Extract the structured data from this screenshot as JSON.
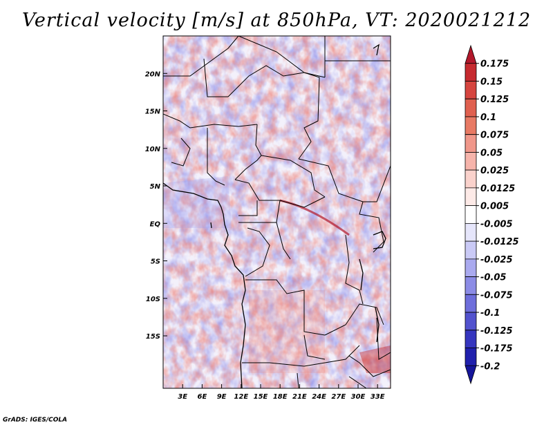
{
  "title": "Vertical velocity [m/s] at 850hPa, VT: 2020021212",
  "credit": "GrADS: IGES/COLA",
  "map": {
    "variable": "Vertical velocity",
    "units": "m/s",
    "level": "850hPa",
    "valid_time": "2020021212",
    "lon_range": [
      0,
      35
    ],
    "lat_range": [
      -22,
      25
    ],
    "lat_ticks": [
      {
        "value": 20,
        "label": "20N"
      },
      {
        "value": 15,
        "label": "15N"
      },
      {
        "value": 10,
        "label": "10N"
      },
      {
        "value": 5,
        "label": "5N"
      },
      {
        "value": 0,
        "label": "EQ"
      },
      {
        "value": -5,
        "label": "5S"
      },
      {
        "value": -10,
        "label": "10S"
      },
      {
        "value": -15,
        "label": "15S"
      }
    ],
    "lon_ticks": [
      {
        "value": 3,
        "label": "3E"
      },
      {
        "value": 6,
        "label": "6E"
      },
      {
        "value": 9,
        "label": "9E"
      },
      {
        "value": 12,
        "label": "12E"
      },
      {
        "value": 15,
        "label": "15E"
      },
      {
        "value": 18,
        "label": "18E"
      },
      {
        "value": 21,
        "label": "21E"
      },
      {
        "value": 24,
        "label": "24E"
      },
      {
        "value": 27,
        "label": "27E"
      },
      {
        "value": 30,
        "label": "30E"
      },
      {
        "value": 33,
        "label": "33E"
      }
    ]
  },
  "colorbar": {
    "labels": [
      "0.175",
      "0.15",
      "0.125",
      "0.1",
      "0.075",
      "0.05",
      "0.025",
      "0.0125",
      "0.005",
      "-0.005",
      "-0.0125",
      "-0.025",
      "-0.05",
      "-0.075",
      "-0.1",
      "-0.125",
      "-0.175",
      "-0.2"
    ],
    "colors": [
      "#b2182b",
      "#c62a2f",
      "#d6453f",
      "#e0604f",
      "#e87a64",
      "#f0978a",
      "#f6b4ab",
      "#fad2cc",
      "#fdeae7",
      "#ffffff",
      "#e6e6fb",
      "#cacaf6",
      "#aaaaef",
      "#8c8ce6",
      "#6e6edb",
      "#5252ce",
      "#3636bf",
      "#2020ad",
      "#15159a"
    ]
  }
}
